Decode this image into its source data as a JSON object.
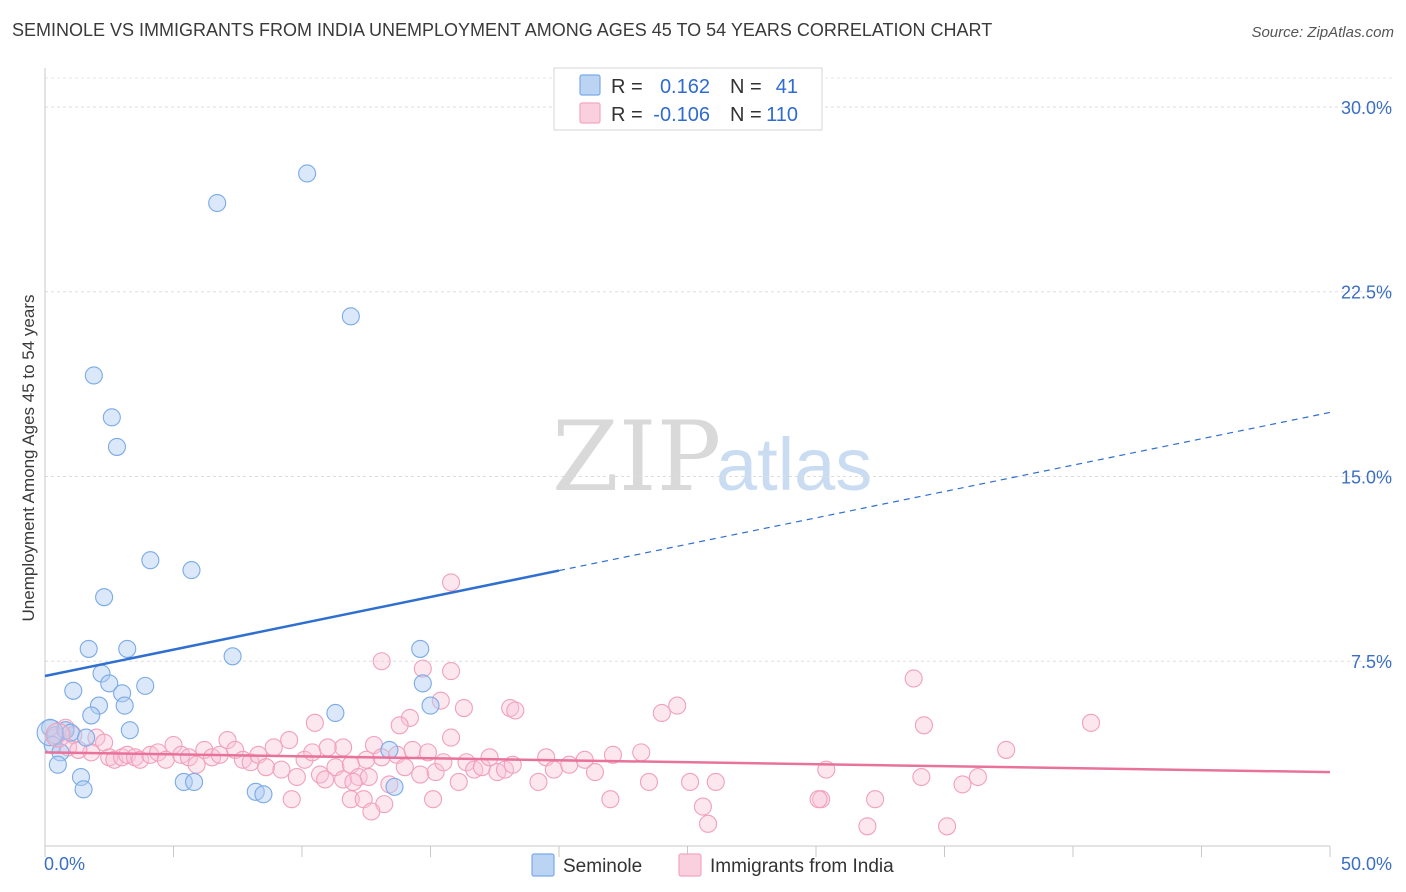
{
  "header": {
    "title": "SEMINOLE VS IMMIGRANTS FROM INDIA UNEMPLOYMENT AMONG AGES 45 TO 54 YEARS CORRELATION CHART",
    "source": "Source: ZipAtlas.com"
  },
  "watermark": {
    "zip": "ZIP",
    "atlas": "atlas"
  },
  "legend": {
    "r_label": "R =",
    "n_label": "N =",
    "rows": [
      {
        "r": "0.162",
        "n": "41"
      },
      {
        "r": "-0.106",
        "n": "110"
      }
    ]
  },
  "chart_data": {
    "type": "scatter",
    "title": "SEMINOLE VS IMMIGRANTS FROM INDIA UNEMPLOYMENT AMONG AGES 45 TO 54 YEARS CORRELATION CHART",
    "xlabel": "",
    "ylabel": "Unemployment Among Ages 45 to 54 years",
    "xlim": [
      0,
      50
    ],
    "ylim": [
      0,
      31.5
    ],
    "x_tick_labels": [
      "0.0%",
      "50.0%"
    ],
    "y_ticks": [
      7.5,
      15.0,
      22.5,
      30.0
    ],
    "y_tick_labels": [
      "7.5%",
      "15.0%",
      "22.5%",
      "30.0%"
    ],
    "grid": true,
    "colors": {
      "seminole": "#7aaae8",
      "india": "#f4a6c0",
      "seminole_line": "#2f6fd0",
      "india_line": "#e8729a"
    },
    "series": [
      {
        "name": "Seminole",
        "r": 0.162,
        "n": 41,
        "trend": {
          "x0": 0,
          "y0": 6.9,
          "x_solid_end": 20,
          "x1": 50,
          "y1": 17.6
        },
        "points": [
          [
            10.2,
            27.3
          ],
          [
            6.7,
            26.1
          ],
          [
            11.9,
            21.5
          ],
          [
            1.9,
            19.1
          ],
          [
            2.6,
            17.4
          ],
          [
            2.8,
            16.2
          ],
          [
            4.1,
            11.6
          ],
          [
            5.7,
            11.2
          ],
          [
            2.3,
            10.1
          ],
          [
            1.7,
            8.0
          ],
          [
            3.2,
            8.0
          ],
          [
            14.6,
            8.0
          ],
          [
            7.3,
            7.7
          ],
          [
            2.2,
            7.0
          ],
          [
            2.5,
            6.6
          ],
          [
            3.9,
            6.5
          ],
          [
            14.7,
            6.6
          ],
          [
            1.1,
            6.3
          ],
          [
            3.0,
            6.2
          ],
          [
            2.1,
            5.7
          ],
          [
            3.1,
            5.7
          ],
          [
            15.0,
            5.7
          ],
          [
            1.8,
            5.3
          ],
          [
            11.3,
            5.4
          ],
          [
            0.2,
            4.8
          ],
          [
            0.4,
            4.5
          ],
          [
            0.8,
            4.7
          ],
          [
            1.0,
            4.6
          ],
          [
            1.6,
            4.4
          ],
          [
            3.3,
            4.7
          ],
          [
            0.3,
            4.1
          ],
          [
            0.6,
            3.8
          ],
          [
            0.5,
            3.3
          ],
          [
            1.4,
            2.8
          ],
          [
            1.5,
            2.3
          ],
          [
            5.4,
            2.6
          ],
          [
            5.8,
            2.6
          ],
          [
            8.2,
            2.2
          ],
          [
            8.5,
            2.1
          ],
          [
            13.6,
            2.4
          ],
          [
            13.4,
            3.9
          ]
        ]
      },
      {
        "name": "Immigrants from India",
        "r": -0.106,
        "n": 110,
        "trend": {
          "x0": 0,
          "y0": 3.8,
          "x1": 50,
          "y1": 3.0
        },
        "points": [
          [
            15.8,
            10.7
          ],
          [
            13.1,
            7.5
          ],
          [
            14.7,
            7.2
          ],
          [
            15.8,
            7.1
          ],
          [
            33.8,
            6.8
          ],
          [
            15.4,
            5.9
          ],
          [
            16.3,
            5.6
          ],
          [
            18.1,
            5.6
          ],
          [
            24.0,
            5.4
          ],
          [
            24.6,
            5.7
          ],
          [
            10.5,
            5.0
          ],
          [
            11.6,
            4.0
          ],
          [
            14.2,
            5.2
          ],
          [
            13.8,
            4.9
          ],
          [
            18.3,
            5.5
          ],
          [
            34.2,
            4.9
          ],
          [
            40.7,
            5.0
          ],
          [
            0.8,
            4.8
          ],
          [
            1.1,
            4.5
          ],
          [
            0.4,
            4.4
          ],
          [
            2.0,
            4.4
          ],
          [
            2.3,
            4.2
          ],
          [
            0.9,
            4.0
          ],
          [
            1.8,
            3.8
          ],
          [
            1.3,
            3.9
          ],
          [
            2.5,
            3.6
          ],
          [
            2.7,
            3.5
          ],
          [
            3.0,
            3.6
          ],
          [
            3.2,
            3.7
          ],
          [
            3.5,
            3.6
          ],
          [
            3.7,
            3.5
          ],
          [
            4.1,
            3.7
          ],
          [
            4.4,
            3.8
          ],
          [
            4.7,
            3.5
          ],
          [
            5.0,
            4.1
          ],
          [
            5.3,
            3.7
          ],
          [
            5.6,
            3.6
          ],
          [
            5.9,
            3.3
          ],
          [
            6.2,
            3.9
          ],
          [
            6.5,
            3.6
          ],
          [
            6.8,
            3.7
          ],
          [
            7.1,
            4.3
          ],
          [
            7.4,
            3.9
          ],
          [
            7.7,
            3.5
          ],
          [
            8.0,
            3.4
          ],
          [
            8.3,
            3.7
          ],
          [
            8.6,
            3.2
          ],
          [
            8.9,
            4.0
          ],
          [
            9.2,
            3.1
          ],
          [
            9.5,
            4.3
          ],
          [
            9.8,
            2.8
          ],
          [
            10.1,
            3.5
          ],
          [
            10.4,
            3.8
          ],
          [
            10.7,
            2.9
          ],
          [
            11.0,
            4.0
          ],
          [
            11.3,
            3.2
          ],
          [
            11.6,
            2.7
          ],
          [
            11.9,
            3.3
          ],
          [
            12.2,
            2.8
          ],
          [
            12.5,
            3.5
          ],
          [
            12.8,
            4.1
          ],
          [
            13.1,
            3.6
          ],
          [
            13.4,
            2.5
          ],
          [
            13.7,
            3.7
          ],
          [
            14.0,
            3.2
          ],
          [
            14.3,
            3.9
          ],
          [
            14.6,
            2.9
          ],
          [
            14.9,
            3.8
          ],
          [
            15.2,
            3.0
          ],
          [
            15.5,
            3.4
          ],
          [
            15.8,
            4.4
          ],
          [
            16.1,
            2.6
          ],
          [
            16.4,
            3.4
          ],
          [
            16.7,
            3.1
          ],
          [
            17.0,
            3.2
          ],
          [
            17.3,
            3.6
          ],
          [
            17.6,
            3.0
          ],
          [
            17.9,
            3.1
          ],
          [
            18.2,
            3.3
          ],
          [
            19.2,
            2.6
          ],
          [
            19.5,
            3.6
          ],
          [
            19.8,
            3.1
          ],
          [
            20.4,
            3.3
          ],
          [
            21.0,
            3.5
          ],
          [
            21.4,
            3.0
          ],
          [
            22.1,
            3.7
          ],
          [
            23.2,
            3.8
          ],
          [
            12.6,
            2.8
          ],
          [
            12.0,
            2.6
          ],
          [
            10.9,
            2.7
          ],
          [
            9.6,
            1.9
          ],
          [
            11.9,
            1.9
          ],
          [
            12.4,
            1.9
          ],
          [
            13.2,
            1.7
          ],
          [
            15.1,
            1.9
          ],
          [
            12.7,
            1.4
          ],
          [
            22.0,
            1.9
          ],
          [
            23.5,
            2.6
          ],
          [
            25.1,
            2.6
          ],
          [
            25.6,
            1.6
          ],
          [
            25.8,
            0.9
          ],
          [
            26.1,
            2.6
          ],
          [
            30.4,
            3.1
          ],
          [
            30.2,
            1.9
          ],
          [
            30.1,
            1.9
          ],
          [
            32.3,
            1.9
          ],
          [
            32.0,
            0.8
          ],
          [
            34.1,
            2.8
          ],
          [
            35.1,
            0.8
          ],
          [
            36.3,
            2.8
          ],
          [
            37.4,
            3.9
          ],
          [
            35.7,
            2.5
          ]
        ]
      }
    ]
  },
  "bottom_legend": {
    "items": [
      "Seminole",
      "Immigrants from India"
    ]
  }
}
